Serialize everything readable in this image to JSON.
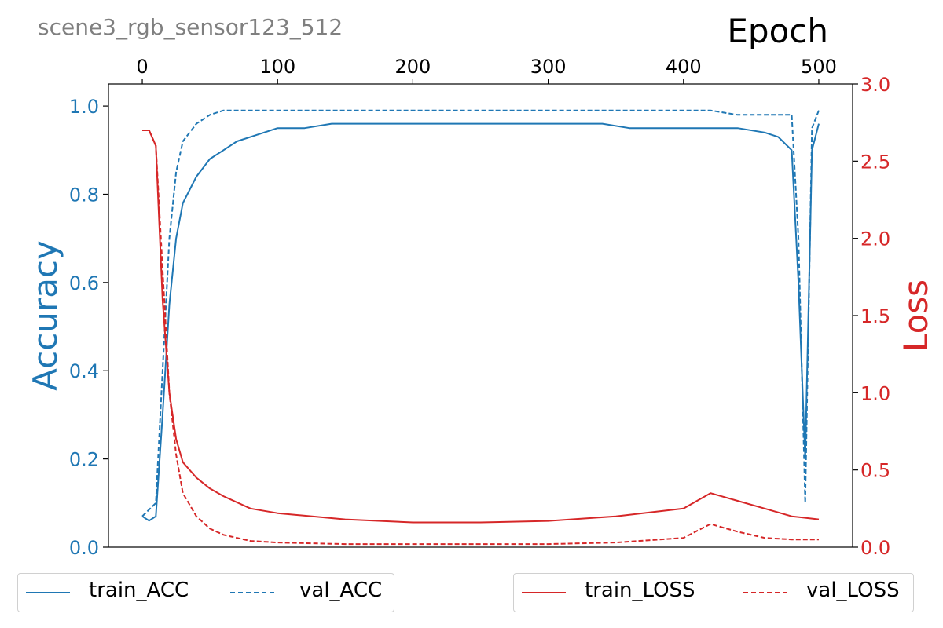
{
  "subtitle": "scene3_rgb_sensor123_512",
  "chart_data": {
    "type": "line",
    "title": "",
    "xlabel": "Epoch",
    "ylabel": "Accuracy",
    "y2label": "Loss",
    "xlim": [
      -25,
      525
    ],
    "ylim": [
      0,
      1.05
    ],
    "y2lim": [
      0,
      3.0
    ],
    "xticks": [
      "0",
      "100",
      "200",
      "300",
      "400",
      "500"
    ],
    "yticks": [
      "0.0",
      "0.2",
      "0.4",
      "0.6",
      "0.8",
      "1.0"
    ],
    "y2ticks": [
      "0.0",
      "0.5",
      "1.0",
      "1.5",
      "2.0",
      "2.5",
      "3.0"
    ],
    "colors": {
      "acc": "#1f77b4",
      "loss": "#d62728",
      "y2label": "#d62728",
      "ylabel": "#1f77b4"
    },
    "series": [
      {
        "name": "train_ACC",
        "axis": "left",
        "style": "solid",
        "color": "#1f77b4",
        "x": [
          0,
          5,
          10,
          15,
          20,
          25,
          30,
          40,
          50,
          60,
          70,
          80,
          90,
          100,
          120,
          140,
          160,
          180,
          200,
          220,
          240,
          260,
          280,
          300,
          320,
          340,
          360,
          380,
          400,
          420,
          440,
          460,
          470,
          480,
          485,
          490,
          495,
          500
        ],
        "y": [
          0.07,
          0.06,
          0.07,
          0.3,
          0.55,
          0.7,
          0.78,
          0.84,
          0.88,
          0.9,
          0.92,
          0.93,
          0.94,
          0.95,
          0.95,
          0.96,
          0.96,
          0.96,
          0.96,
          0.96,
          0.96,
          0.96,
          0.96,
          0.96,
          0.96,
          0.96,
          0.95,
          0.95,
          0.95,
          0.95,
          0.95,
          0.94,
          0.93,
          0.9,
          0.6,
          0.2,
          0.9,
          0.96
        ]
      },
      {
        "name": "val_ACC",
        "axis": "left",
        "style": "dashed",
        "color": "#1f77b4",
        "x": [
          0,
          10,
          15,
          20,
          25,
          30,
          40,
          50,
          60,
          80,
          100,
          150,
          200,
          250,
          300,
          350,
          400,
          420,
          440,
          460,
          480,
          485,
          490,
          495,
          500
        ],
        "y": [
          0.07,
          0.1,
          0.4,
          0.7,
          0.85,
          0.92,
          0.96,
          0.98,
          0.99,
          0.99,
          0.99,
          0.99,
          0.99,
          0.99,
          0.99,
          0.99,
          0.99,
          0.99,
          0.98,
          0.98,
          0.98,
          0.7,
          0.1,
          0.95,
          0.99
        ]
      },
      {
        "name": "train_LOSS",
        "axis": "right",
        "style": "solid",
        "color": "#d62728",
        "x": [
          0,
          5,
          10,
          15,
          20,
          25,
          30,
          40,
          50,
          60,
          80,
          100,
          150,
          200,
          250,
          300,
          350,
          400,
          420,
          440,
          460,
          480,
          500
        ],
        "y": [
          2.7,
          2.7,
          2.6,
          1.6,
          1.0,
          0.7,
          0.55,
          0.45,
          0.38,
          0.33,
          0.25,
          0.22,
          0.18,
          0.16,
          0.16,
          0.17,
          0.2,
          0.25,
          0.35,
          0.3,
          0.25,
          0.2,
          0.18
        ]
      },
      {
        "name": "val_LOSS",
        "axis": "right",
        "style": "dashed",
        "color": "#d62728",
        "x": [
          0,
          5,
          10,
          15,
          20,
          25,
          30,
          40,
          50,
          60,
          80,
          100,
          150,
          200,
          250,
          300,
          350,
          400,
          420,
          440,
          460,
          480,
          500
        ],
        "y": [
          2.7,
          2.7,
          2.6,
          1.8,
          1.0,
          0.6,
          0.35,
          0.2,
          0.12,
          0.08,
          0.04,
          0.03,
          0.02,
          0.02,
          0.02,
          0.02,
          0.03,
          0.06,
          0.15,
          0.1,
          0.06,
          0.05,
          0.05
        ]
      }
    ],
    "legend": [
      {
        "group": "left",
        "items": [
          {
            "label": "train_ACC",
            "style": "solid"
          },
          {
            "label": "val_ACC",
            "style": "dashed"
          }
        ]
      },
      {
        "group": "right",
        "items": [
          {
            "label": "train_LOSS",
            "style": "solid"
          },
          {
            "label": "val_LOSS",
            "style": "dashed"
          }
        ]
      }
    ],
    "grid": false,
    "legend_placement": "bottom"
  }
}
